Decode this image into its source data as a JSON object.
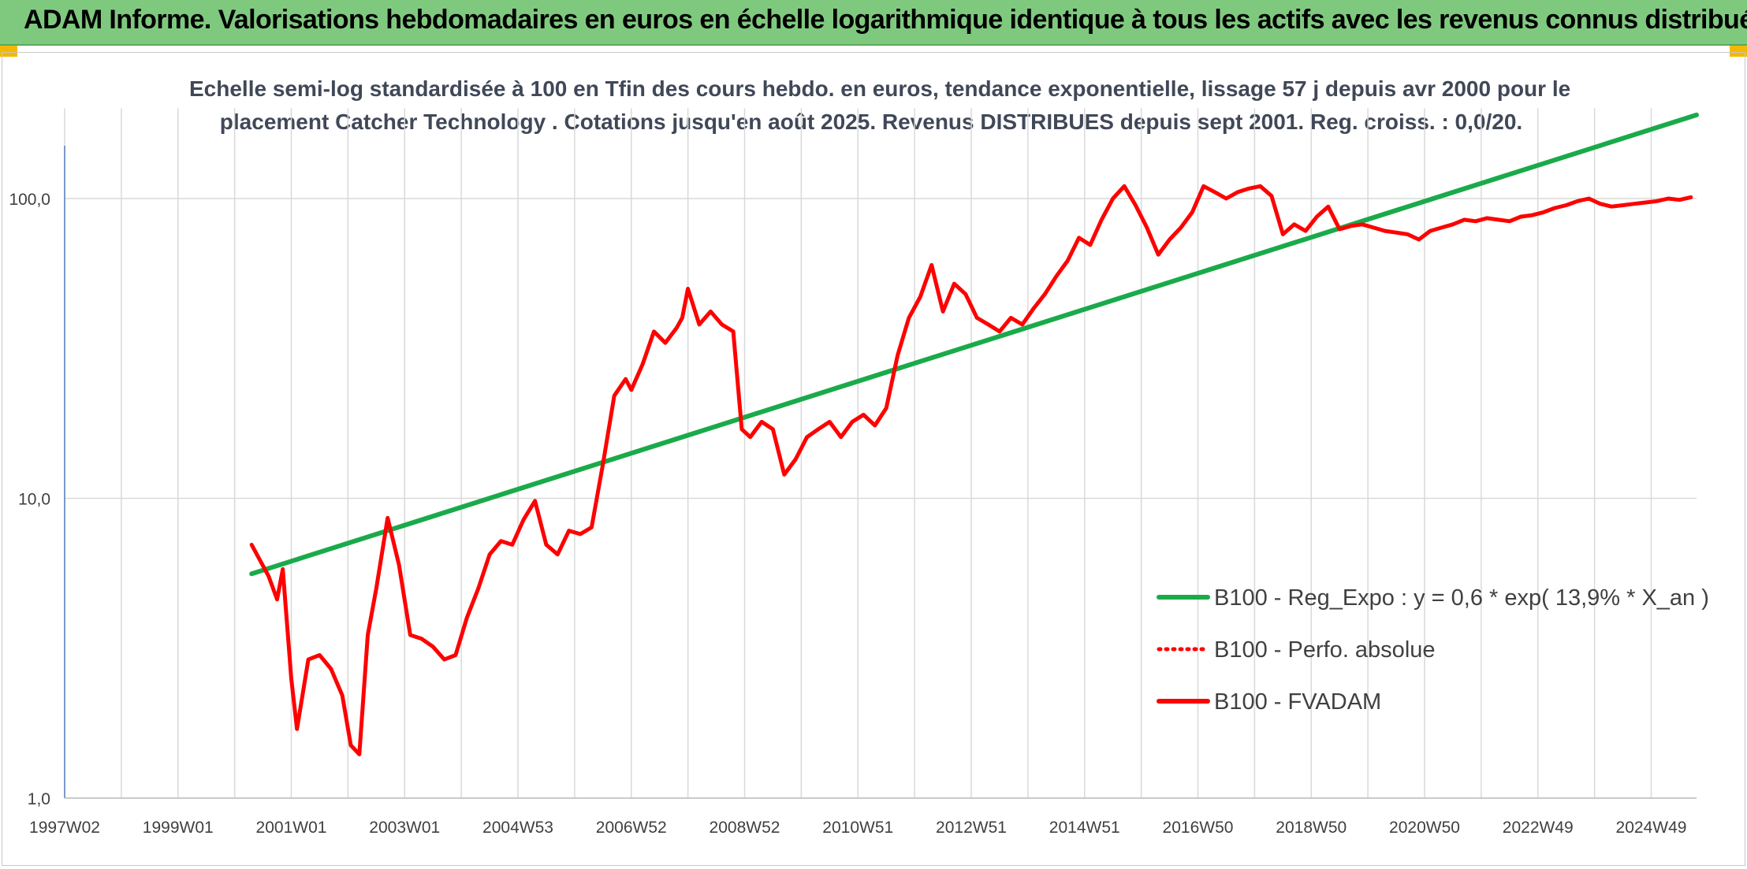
{
  "banner": {
    "title": "ADAM Informe. Valorisations hebdomadaires en euros en échelle logarithmique identique à tous les actifs avec les revenus connus distribués"
  },
  "colors": {
    "banner_bg": "#7fc97f",
    "corner_accent": "#f5b800",
    "trend": "#1aaa4a",
    "series": "#ff0000",
    "grid": "#d9d9d9",
    "title_text": "#404858"
  },
  "chart_data": {
    "type": "line",
    "title_lines": [
      "Echelle semi-log standardisée à 100 en Tfin des cours hebdo. en euros, tendance exponentielle, lissage 57 j depuis avr 2000 pour le",
      "placement Catcher Technology . Cotations jusqu'en août 2025. Revenus DISTRIBUES depuis sept 2001. Reg. croiss. : 0,0/20."
    ],
    "y_scale": "log",
    "ylim": [
      1,
      200
    ],
    "y_ticks": [
      {
        "value": 1,
        "label": "1,0"
      },
      {
        "value": 10,
        "label": "10,0"
      },
      {
        "value": 100,
        "label": "100,0"
      }
    ],
    "xlim": [
      1997.0,
      2025.8
    ],
    "x_ticks": [
      {
        "value": 1997.0,
        "label": "1997W02"
      },
      {
        "value": 1999.0,
        "label": "1999W01"
      },
      {
        "value": 2001.0,
        "label": "2001W01"
      },
      {
        "value": 2003.0,
        "label": "2003W01"
      },
      {
        "value": 2005.0,
        "label": "2004W53"
      },
      {
        "value": 2007.0,
        "label": "2006W52"
      },
      {
        "value": 2009.0,
        "label": "2008W52"
      },
      {
        "value": 2011.0,
        "label": "2010W51"
      },
      {
        "value": 2013.0,
        "label": "2012W51"
      },
      {
        "value": 2015.0,
        "label": "2014W51"
      },
      {
        "value": 2017.0,
        "label": "2016W50"
      },
      {
        "value": 2019.0,
        "label": "2018W50"
      },
      {
        "value": 2021.0,
        "label": "2020W50"
      },
      {
        "value": 2023.0,
        "label": "2022W49"
      },
      {
        "value": 2025.0,
        "label": "2024W49"
      }
    ],
    "grid": true,
    "legend_position": "bottom-right",
    "series": [
      {
        "name": "B100 - Reg_Expo : y = 0,6 * exp( 13,9% *  X_an )",
        "color": "#1aaa4a",
        "style": "solid",
        "x": [
          2000.3,
          2025.8
        ],
        "y": [
          5.6,
          190
        ]
      },
      {
        "name": "B100 - Perfo. absolue",
        "color": "#ff0000",
        "style": "dotted",
        "x": [],
        "y": []
      },
      {
        "name": "B100 - FVADAM",
        "color": "#ff0000",
        "style": "solid",
        "x": [
          2000.3,
          2000.45,
          2000.6,
          2000.75,
          2000.85,
          2001.0,
          2001.1,
          2001.3,
          2001.5,
          2001.7,
          2001.9,
          2002.05,
          2002.2,
          2002.35,
          2002.5,
          2002.7,
          2002.9,
          2003.1,
          2003.3,
          2003.5,
          2003.7,
          2003.9,
          2004.1,
          2004.3,
          2004.5,
          2004.7,
          2004.9,
          2005.1,
          2005.3,
          2005.5,
          2005.7,
          2005.9,
          2006.1,
          2006.3,
          2006.5,
          2006.7,
          2006.9,
          2007.0,
          2007.2,
          2007.4,
          2007.6,
          2007.8,
          2007.9,
          2008.0,
          2008.2,
          2008.4,
          2008.6,
          2008.8,
          2008.95,
          2009.1,
          2009.3,
          2009.5,
          2009.7,
          2009.9,
          2010.1,
          2010.3,
          2010.5,
          2010.7,
          2010.9,
          2011.1,
          2011.3,
          2011.5,
          2011.7,
          2011.9,
          2012.1,
          2012.3,
          2012.5,
          2012.7,
          2012.9,
          2013.1,
          2013.3,
          2013.5,
          2013.7,
          2013.9,
          2014.1,
          2014.3,
          2014.5,
          2014.7,
          2014.9,
          2015.1,
          2015.3,
          2015.5,
          2015.7,
          2015.9,
          2016.1,
          2016.3,
          2016.5,
          2016.7,
          2016.9,
          2017.1,
          2017.3,
          2017.5,
          2017.7,
          2017.9,
          2018.1,
          2018.3,
          2018.5,
          2018.7,
          2018.9,
          2019.1,
          2019.3,
          2019.5,
          2019.7,
          2019.9,
          2020.1,
          2020.3,
          2020.5,
          2020.7,
          2020.9,
          2021.1,
          2021.3,
          2021.5,
          2021.7,
          2021.9,
          2022.1,
          2022.3,
          2022.5,
          2022.7,
          2022.9,
          2023.1,
          2023.3,
          2023.5,
          2023.7,
          2023.9,
          2024.1,
          2024.3,
          2024.5,
          2024.7,
          2024.9,
          2025.1,
          2025.3,
          2025.5,
          2025.7
        ],
        "y": [
          7.0,
          6.2,
          5.5,
          4.6,
          5.8,
          2.5,
          1.7,
          2.9,
          3.0,
          2.7,
          2.2,
          1.5,
          1.4,
          3.5,
          5.0,
          8.6,
          6.0,
          3.5,
          3.4,
          3.2,
          2.9,
          3.0,
          4.0,
          5.0,
          6.5,
          7.2,
          7.0,
          8.5,
          9.8,
          7.0,
          6.5,
          7.8,
          7.6,
          8.0,
          13.0,
          22.0,
          25.0,
          23.0,
          28.0,
          36.0,
          33.0,
          37.0,
          40.0,
          50.0,
          38.0,
          42.0,
          38.0,
          36.0,
          17.0,
          16.0,
          18.0,
          17.0,
          12.0,
          13.5,
          16.0,
          17.0,
          18.0,
          16.0,
          18.0,
          19.0,
          17.5,
          20.0,
          30.0,
          40.0,
          47.0,
          60.0,
          42.0,
          52.0,
          48.0,
          40.0,
          38.0,
          36.0,
          40.0,
          38.0,
          43.0,
          48.0,
          55.0,
          62.0,
          74.0,
          70.0,
          85.0,
          100.0,
          110.0,
          95.0,
          80.0,
          65.0,
          73.0,
          80.0,
          90.0,
          110.0,
          105.0,
          100.0,
          105.0,
          108.0,
          110.0,
          102.0,
          76.0,
          82.0,
          78.0,
          87.0,
          94.0,
          79.0,
          81.0,
          82.0,
          80.0,
          78.0,
          77.0,
          76.0,
          73.0,
          78.0,
          80.0,
          82.0,
          85.0,
          84.0,
          86.0,
          85.0,
          84.0,
          87.0,
          88.0,
          90.0,
          93.0,
          95.0,
          98.0,
          100.0,
          96.0,
          94.0,
          95.0,
          96.0,
          97.0,
          98.0,
          100.0,
          99.0,
          101.0
        ]
      }
    ]
  }
}
